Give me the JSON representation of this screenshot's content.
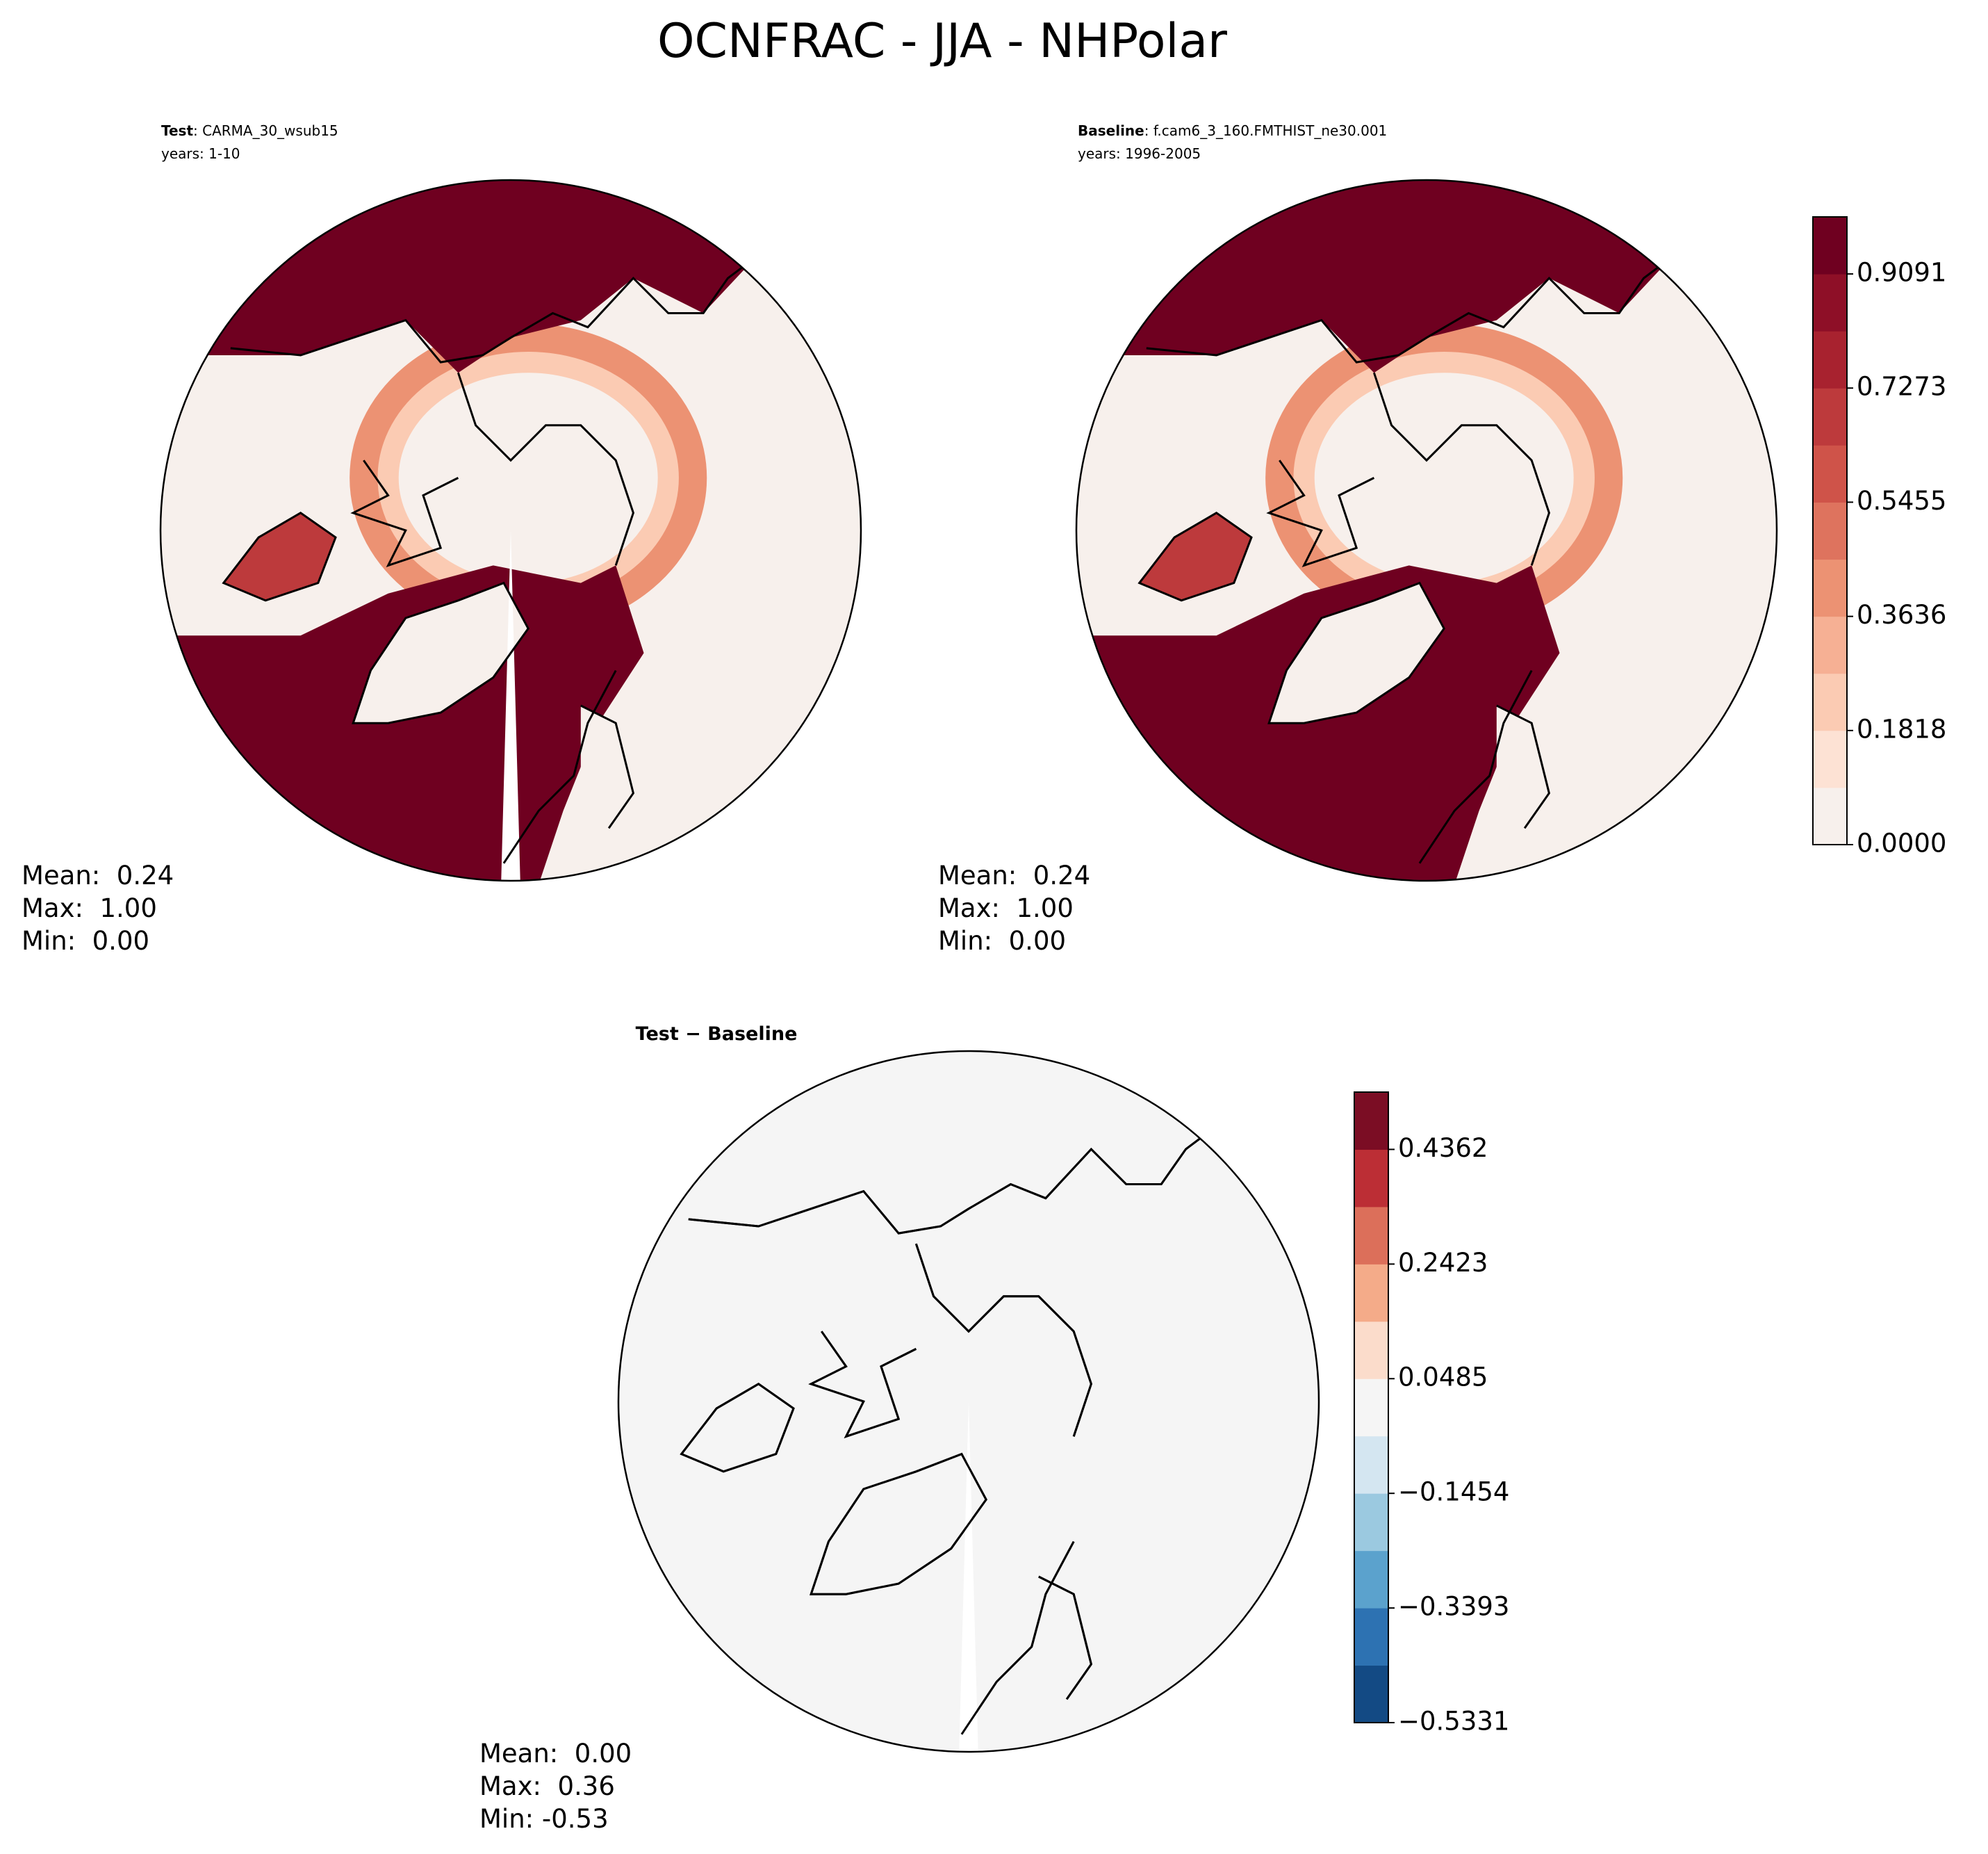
{
  "title": "OCNFRAC - JJA - NHPolar",
  "panels": [
    {
      "label_bold": "Test",
      "label": ": CARMA_30_wsub15",
      "years": "years: 1-10",
      "stats": [
        "Mean:  0.24",
        "Max:  1.00",
        "Min:  0.00"
      ]
    },
    {
      "label_bold": "Baseline",
      "label": ": f.cam6_3_160.FMTHIST_ne30.001",
      "years": "years: 1996-2005",
      "stats": [
        "Mean:  0.24",
        "Max:  1.00",
        "Min:  0.00"
      ]
    },
    {
      "label_bold": "Test − Baseline",
      "stats": [
        "Mean:  0.00",
        "Max:  0.36",
        "Min: -0.53"
      ]
    }
  ],
  "colorbars": [
    {
      "lim": [
        0,
        1
      ],
      "ticks": [
        {
          "value": 0,
          "label": "0.0000"
        },
        {
          "value": 0.1818,
          "label": "0.1818"
        },
        {
          "value": 0.3636,
          "label": "0.3636"
        },
        {
          "value": 0.5455,
          "label": "0.5455"
        },
        {
          "value": 0.7273,
          "label": "0.7273"
        },
        {
          "value": 0.9091,
          "label": "0.9091"
        }
      ],
      "colors": [
        "#f7f0ec",
        "#fde2d4",
        "#fbcbb3",
        "#f6b094",
        "#ec9273",
        "#de735e",
        "#cf5349",
        "#bd3a3c",
        "#a8222f",
        "#8e0f27",
        "#6f0020"
      ]
    },
    {
      "lim": [
        -0.5331,
        0.5331
      ],
      "ticks": [
        {
          "value": -0.5331,
          "label": "−0.5331"
        },
        {
          "value": -0.3393,
          "label": "−0.3393"
        },
        {
          "value": -0.1454,
          "label": "−0.1454"
        },
        {
          "value": 0.0485,
          "label": "0.0485"
        },
        {
          "value": 0.2423,
          "label": "0.2423"
        },
        {
          "value": 0.4362,
          "label": "0.4362"
        }
      ],
      "colors": [
        "#134a84",
        "#2d72b2",
        "#5ba2cd",
        "#9bc9e0",
        "#d4e6f1",
        "#f5f5f5",
        "#fbdccb",
        "#f4ab89",
        "#dc6f5a",
        "#bc2e35",
        "#7b0d24"
      ]
    }
  ]
}
